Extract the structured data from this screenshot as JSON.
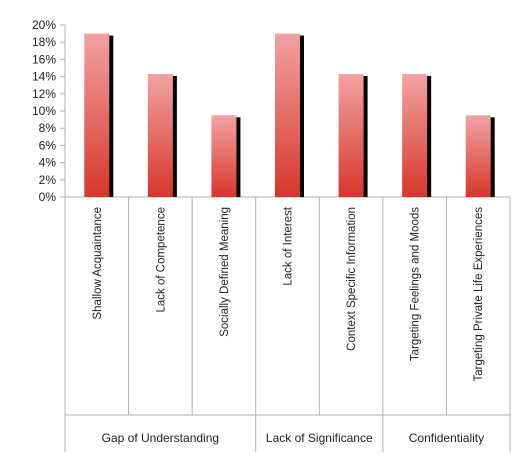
{
  "chart_data": {
    "type": "bar",
    "categories": [
      "Shallow Acquaintance",
      "Lack of Competence",
      "Socially Defined Meaning",
      "Lack of Interest",
      "Context Specific Information",
      "Targeting Feelings and Moods",
      "Targeting Private Life Experiences"
    ],
    "groups": [
      {
        "label": "Gap of Understanding",
        "count": 3
      },
      {
        "label": "Lack of Significance",
        "count": 2
      },
      {
        "label": "Confidentiality",
        "count": 2
      }
    ],
    "values": [
      19.0,
      14.3,
      9.5,
      19.0,
      14.3,
      14.3,
      9.5
    ],
    "yticks": [
      "0%",
      "2%",
      "4%",
      "6%",
      "8%",
      "10%",
      "12%",
      "14%",
      "16%",
      "18%",
      "20%"
    ],
    "ylim": [
      0,
      20
    ],
    "grid": false,
    "legend": "none",
    "colors": {
      "bar_top": "#f2a3a3",
      "bar_bottom": "#d8362b",
      "bar_shadow": "#000000",
      "axis": "#b0b0b0"
    }
  }
}
